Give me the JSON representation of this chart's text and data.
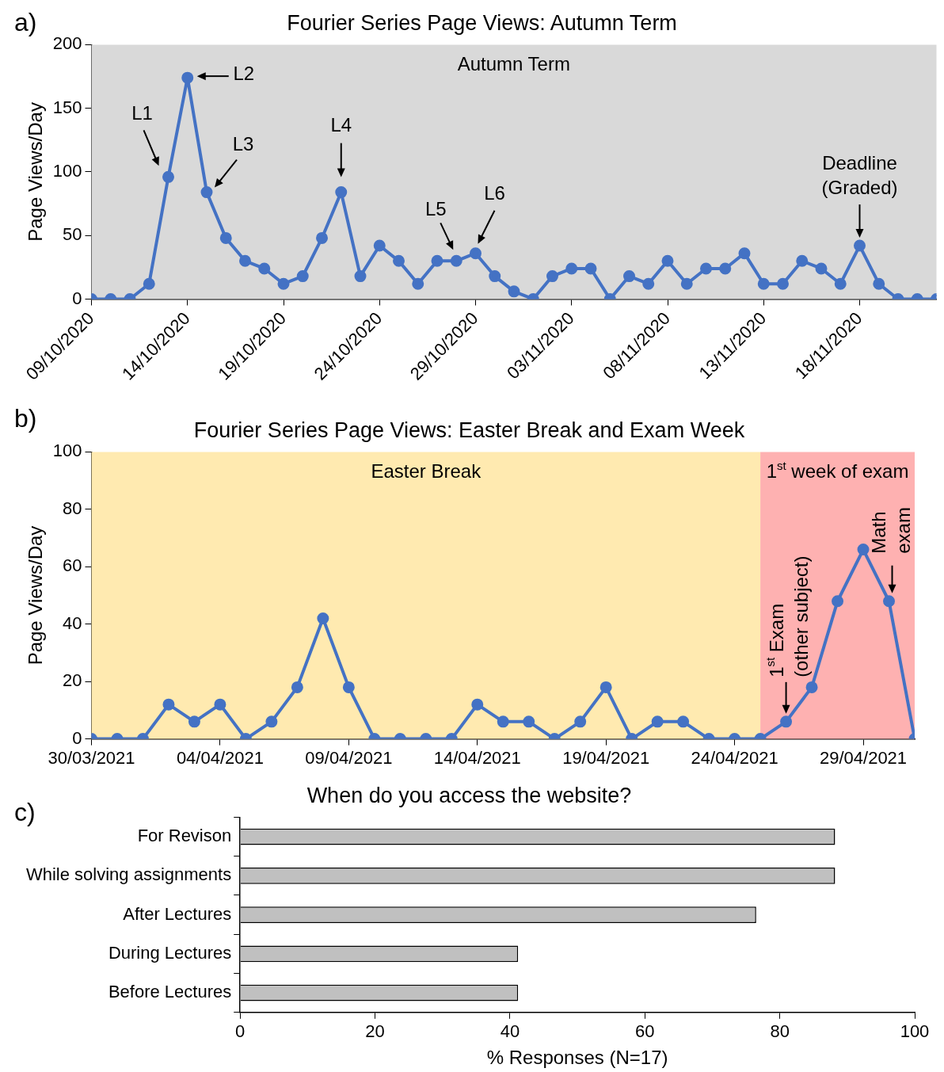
{
  "chart_data": [
    {
      "type": "line",
      "title": "Fourier Series Page Views: Autumn Term",
      "ylabel": "Page Views/Day",
      "x": [
        "2020-10-09",
        "2020-10-10",
        "2020-10-11",
        "2020-10-12",
        "2020-10-13",
        "2020-10-14",
        "2020-10-15",
        "2020-10-16",
        "2020-10-17",
        "2020-10-18",
        "2020-10-19",
        "2020-10-20",
        "2020-10-21",
        "2020-10-22",
        "2020-10-23",
        "2020-10-24",
        "2020-10-25",
        "2020-10-26",
        "2020-10-27",
        "2020-10-28",
        "2020-10-29",
        "2020-10-30",
        "2020-10-31",
        "2020-11-01",
        "2020-11-02",
        "2020-11-03",
        "2020-11-04",
        "2020-11-05",
        "2020-11-06",
        "2020-11-07",
        "2020-11-08",
        "2020-11-09",
        "2020-11-10",
        "2020-11-11",
        "2020-11-12",
        "2020-11-13",
        "2020-11-14",
        "2020-11-15",
        "2020-11-16",
        "2020-11-17",
        "2020-11-18",
        "2020-11-19",
        "2020-11-20",
        "2020-11-21",
        "2020-11-22"
      ],
      "series": [
        {
          "color": "#4472c4",
          "values": [
            0,
            0,
            0,
            12,
            96,
            174,
            84,
            48,
            30,
            24,
            12,
            18,
            48,
            84,
            18,
            42,
            30,
            12,
            30,
            30,
            36,
            18,
            6,
            0,
            18,
            24,
            24,
            0,
            18,
            12,
            30,
            12,
            24,
            24,
            36,
            12,
            12,
            30,
            24,
            12,
            42,
            12,
            0,
            0,
            0
          ]
        }
      ],
      "xlim": [
        "2020-10-09",
        "2020-11-22"
      ],
      "xticks": [
        {
          "value": "2020-10-09",
          "label": "09/10/2020"
        },
        {
          "value": "2020-10-14",
          "label": "14/10/2020"
        },
        {
          "value": "2020-10-19",
          "label": "19/10/2020"
        },
        {
          "value": "2020-10-24",
          "label": "24/10/2020"
        },
        {
          "value": "2020-10-29",
          "label": "29/10/2020"
        },
        {
          "value": "2020-11-03",
          "label": "03/11/2020"
        },
        {
          "value": "2020-11-08",
          "label": "08/11/2020"
        },
        {
          "value": "2020-11-13",
          "label": "13/11/2020"
        },
        {
          "value": "2020-11-18",
          "label": "18/11/2020"
        }
      ],
      "ylim": [
        0,
        200
      ],
      "yticks": [
        0,
        50,
        100,
        150,
        200
      ],
      "bands": [
        {
          "axis": "x",
          "from": "2020-10-09",
          "to": "2020-11-22",
          "label": "Autumn Term",
          "color": "#d9d9d9"
        }
      ],
      "annotations": [
        "a)",
        {
          "text": "L1",
          "x": "2020-10-13",
          "y": 96
        },
        {
          "text": "L2",
          "x": "2020-10-14",
          "y": 174
        },
        {
          "text": "L3",
          "x": "2020-10-15",
          "y": 84
        },
        {
          "text": "L4",
          "x": "2020-10-22",
          "y": 84
        },
        {
          "text": "L5",
          "x": "2020-10-28",
          "y": 30
        },
        {
          "text": "L6",
          "x": "2020-10-29",
          "y": 36
        },
        {
          "text": "Deadline\n(Graded)",
          "x": "2020-11-18",
          "y": 42
        }
      ],
      "grid": false,
      "legend": false,
      "marker": "circle",
      "line_style": "solid"
    },
    {
      "type": "line",
      "title": "Fourier Series Page Views: Easter Break and Exam Week",
      "ylabel": "Page Views/Day",
      "x": [
        "2021-03-30",
        "2021-03-31",
        "2021-04-01",
        "2021-04-02",
        "2021-04-03",
        "2021-04-04",
        "2021-04-05",
        "2021-04-06",
        "2021-04-07",
        "2021-04-08",
        "2021-04-09",
        "2021-04-10",
        "2021-04-11",
        "2021-04-12",
        "2021-04-13",
        "2021-04-14",
        "2021-04-15",
        "2021-04-16",
        "2021-04-17",
        "2021-04-18",
        "2021-04-19",
        "2021-04-20",
        "2021-04-21",
        "2021-04-22",
        "2021-04-23",
        "2021-04-24",
        "2021-04-25",
        "2021-04-26",
        "2021-04-27",
        "2021-04-28",
        "2021-04-29",
        "2021-04-30",
        "2021-05-01"
      ],
      "series": [
        {
          "color": "#4472c4",
          "values": [
            0,
            0,
            0,
            12,
            6,
            12,
            0,
            6,
            18,
            42,
            18,
            0,
            0,
            0,
            0,
            12,
            6,
            6,
            0,
            6,
            18,
            0,
            6,
            6,
            0,
            0,
            0,
            6,
            18,
            48,
            66,
            48,
            0
          ]
        }
      ],
      "xlim": [
        "2021-03-30",
        "2021-05-01"
      ],
      "xticks": [
        {
          "value": "2021-03-30",
          "label": "30/03/2021"
        },
        {
          "value": "2021-04-04",
          "label": "04/04/2021"
        },
        {
          "value": "2021-04-09",
          "label": "09/04/2021"
        },
        {
          "value": "2021-04-14",
          "label": "14/04/2021"
        },
        {
          "value": "2021-04-19",
          "label": "19/04/2021"
        },
        {
          "value": "2021-04-24",
          "label": "24/04/2021"
        },
        {
          "value": "2021-04-29",
          "label": "29/04/2021"
        }
      ],
      "ylim": [
        0,
        100
      ],
      "yticks": [
        0,
        20,
        40,
        60,
        80,
        100
      ],
      "bands": [
        {
          "axis": "x",
          "from": "2021-03-30",
          "to": "2021-04-25",
          "label": "Easter Break",
          "color": "#ffeab0"
        },
        {
          "axis": "x",
          "from": "2021-04-25",
          "to": "2021-05-01",
          "label": "1$^{st}$ week of exam",
          "color": "#feb1b1"
        }
      ],
      "annotations": [
        "b)",
        {
          "text": "1$^{st}$ Exam\n(other subject)",
          "x": "2021-04-26",
          "y": 6
        },
        {
          "text": "Math\nexam",
          "x": "2021-04-30",
          "y": 48
        }
      ],
      "grid": false,
      "legend": false,
      "marker": "circle",
      "line_style": "solid"
    },
    {
      "type": "bar",
      "orientation": "horizontal",
      "title": "When do you access the website?",
      "xlabel": "% Responses (N=17)",
      "categories": [
        "For Revison",
        "While solving assignments",
        "After Lectures",
        "During Lectures",
        "Before Lectures"
      ],
      "values": [
        88.2,
        88.2,
        76.5,
        41.2,
        41.2
      ],
      "color": "#c0c0c0",
      "xlim": [
        0,
        100
      ],
      "xticks": [
        0,
        20,
        40,
        60,
        80,
        100
      ],
      "annotations": [
        "c)"
      ],
      "grid": false,
      "legend": false
    }
  ]
}
